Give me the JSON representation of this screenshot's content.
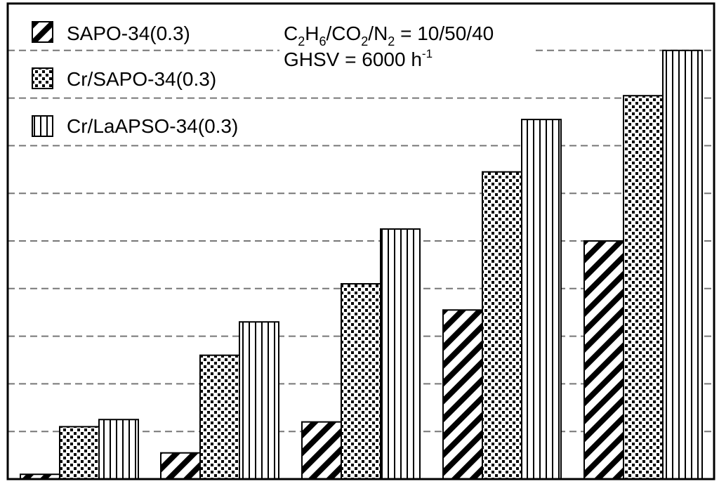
{
  "chart_data": {
    "type": "bar",
    "title": "",
    "xlabel": "",
    "ylabel": "",
    "categories": [
      "",
      "",
      "",
      "",
      ""
    ],
    "ylim": [
      0,
      9
    ],
    "grid": "horizontal dashed",
    "legend_position": "top-left",
    "series": [
      {
        "name": "SAPO-34(0.3)",
        "pattern": "diagonal-hatch",
        "values": [
          0.1,
          0.55,
          1.2,
          3.55,
          5.0
        ]
      },
      {
        "name": "Cr/SAPO-34(0.3)",
        "pattern": "dotted",
        "values": [
          1.1,
          2.6,
          4.1,
          6.45,
          8.05
        ]
      },
      {
        "name": "Cr/LaAPSO-34(0.3)",
        "pattern": "vertical-lines",
        "values": [
          1.25,
          3.3,
          5.25,
          7.55,
          9.0
        ]
      }
    ],
    "annotations": {
      "feed": {
        "p1": "C",
        "s1": "2",
        "p2": "H",
        "s2": "6",
        "p3": "/CO",
        "s3": "2",
        "p4": "/N",
        "s4": "2",
        "p5": " = 10/50/40"
      },
      "ghsv": {
        "main": "GHSV = 6000 h",
        "sup": "-1"
      }
    }
  },
  "colors": {
    "ink": "#000000",
    "grid": "#777777",
    "background": "#ffffff"
  }
}
